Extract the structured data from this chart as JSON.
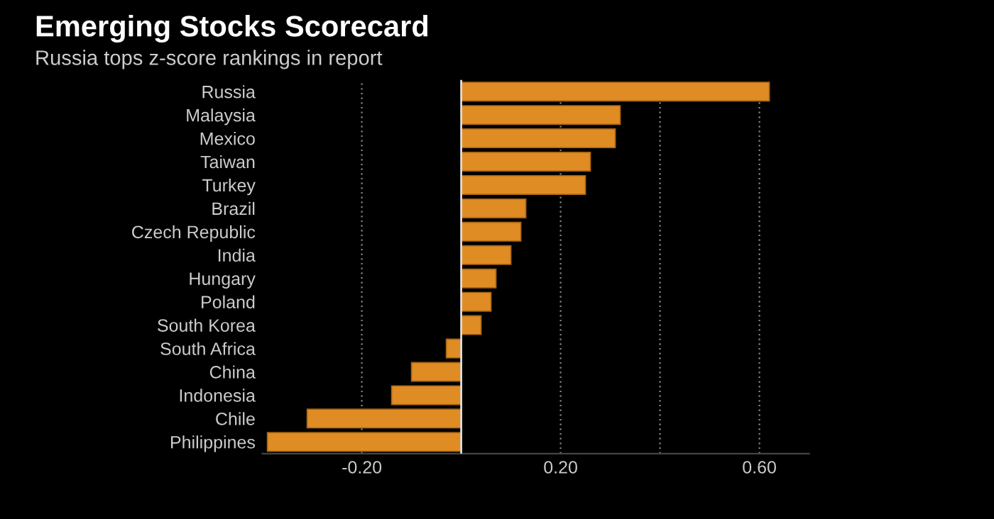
{
  "chart_data": {
    "type": "bar",
    "orientation": "horizontal",
    "title": "Emerging Stocks Scorecard",
    "subtitle": "Russia tops z-score rankings in report",
    "categories": [
      "Russia",
      "Malaysia",
      "Mexico",
      "Taiwan",
      "Turkey",
      "Brazil",
      "Czech Republic",
      "India",
      "Hungary",
      "Poland",
      "South Korea",
      "South Africa",
      "China",
      "Indonesia",
      "Chile",
      "Philippines"
    ],
    "values": [
      0.62,
      0.32,
      0.31,
      0.26,
      0.25,
      0.13,
      0.12,
      0.1,
      0.07,
      0.06,
      0.04,
      -0.03,
      -0.1,
      -0.14,
      -0.31,
      -0.39
    ],
    "color": "#e08c24",
    "xlim": [
      -0.4,
      0.7
    ],
    "xticks": [
      {
        "value": -0.2,
        "label": "-0.20"
      },
      {
        "value": 0.2,
        "label": "0.20"
      },
      {
        "value": 0.4,
        "label": null
      },
      {
        "value": 0.6,
        "label": "0.60"
      }
    ],
    "grid": "x",
    "legend": false
  }
}
